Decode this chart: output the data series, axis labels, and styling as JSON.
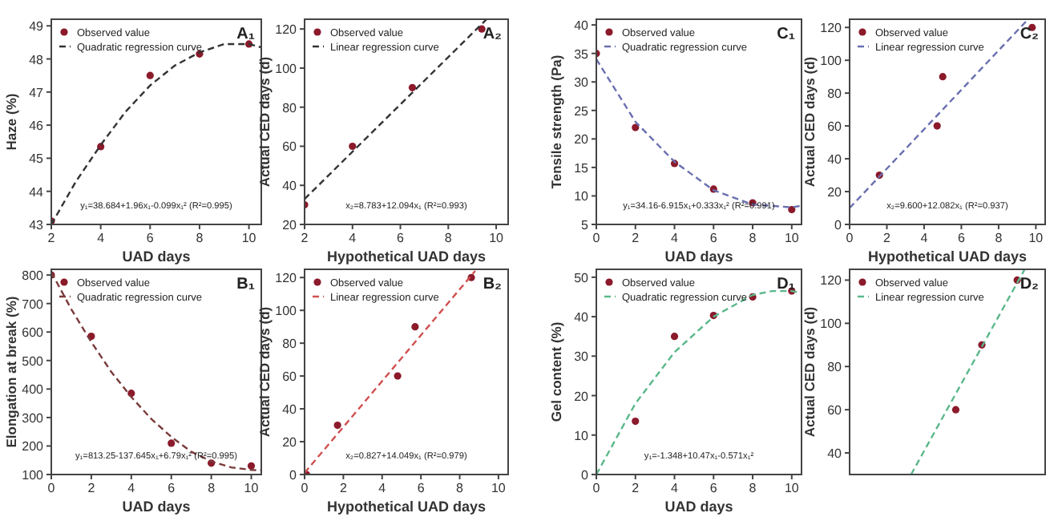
{
  "chart_data": [
    {
      "type": "scatter",
      "title": "A₁",
      "xlabel": "UAD days",
      "ylabel": "Haze (%)",
      "xlim": [
        2,
        10.5
      ],
      "xticks": [
        2,
        4,
        6,
        8,
        10
      ],
      "ylim": [
        43,
        49.2
      ],
      "yticks": [
        43,
        44,
        45,
        46,
        47,
        48,
        49
      ],
      "legend": "top left",
      "annotations": [
        "y₁=38.684+1.96x₁-0.099x₁² (R²=0.995)"
      ],
      "series": [
        {
          "name": "Observed value",
          "marker": "circle",
          "color": "#8b1a2b",
          "x": [
            2,
            4,
            6,
            8,
            10
          ],
          "values": [
            43.1,
            45.35,
            47.5,
            48.15,
            48.45
          ]
        },
        {
          "name": "Quadratic regression curve",
          "type": "line",
          "marker": "none",
          "line_style": "dashed",
          "color": "#333333",
          "x": [
            2,
            3,
            4,
            5,
            6,
            7,
            8,
            9,
            10,
            10.5
          ],
          "values": [
            43.0,
            44.3,
            45.4,
            46.4,
            47.2,
            47.8,
            48.2,
            48.45,
            48.45,
            48.35
          ]
        }
      ]
    },
    {
      "type": "scatter",
      "title": "A₂",
      "xlabel": "Hypothetical UAD days",
      "ylabel": "Actual CED days (d)",
      "xlim": [
        2,
        10.5
      ],
      "xticks": [
        2,
        4,
        6,
        8,
        10
      ],
      "ylim": [
        20,
        125
      ],
      "yticks": [
        20,
        40,
        60,
        80,
        100,
        120
      ],
      "legend": "top left",
      "annotations": [
        "x₂=8.783+12.094x₁ (R²=0.993)"
      ],
      "series": [
        {
          "name": "Observed value",
          "marker": "circle",
          "color": "#8b1a2b",
          "x": [
            2,
            4,
            6.5,
            9.4
          ],
          "values": [
            30,
            60,
            90,
            120
          ]
        },
        {
          "name": "Linear regression curve",
          "type": "line",
          "marker": "none",
          "line_style": "dashed",
          "color": "#333333",
          "x": [
            2,
            9.6
          ],
          "values": [
            33,
            125
          ]
        }
      ]
    },
    {
      "type": "scatter",
      "title": "C₁",
      "xlabel": "UAD days",
      "ylabel": "Tensile strength (Pa)",
      "xlim": [
        0,
        10.5
      ],
      "xticks": [
        0,
        2,
        4,
        6,
        8,
        10
      ],
      "ylim": [
        5,
        41
      ],
      "yticks": [
        5,
        10,
        15,
        20,
        25,
        30,
        35,
        40
      ],
      "legend": "top left",
      "annotations": [
        "y₁=34.16-6.915x₁+0.333x₁² (R²=0.991)"
      ],
      "series": [
        {
          "name": "Observed value",
          "marker": "circle",
          "color": "#8b1a2b",
          "x": [
            0,
            2,
            4,
            6,
            8,
            10
          ],
          "values": [
            35,
            22,
            15.7,
            11.2,
            8.8,
            7.6
          ]
        },
        {
          "name": "Quadratic regression curve",
          "type": "line",
          "marker": "none",
          "line_style": "dashed",
          "color": "#6a6fb0",
          "x": [
            0,
            2,
            4,
            6,
            8,
            10,
            10.5
          ],
          "values": [
            34,
            23,
            16,
            11,
            8.5,
            8,
            8.3
          ]
        }
      ]
    },
    {
      "type": "scatter",
      "title": "C₂",
      "xlabel": "Hypothetical UAD days",
      "ylabel": "Actual CED days (d)",
      "xlim": [
        0,
        10.5
      ],
      "xticks": [
        0,
        2,
        4,
        6,
        8,
        10
      ],
      "ylim": [
        0,
        125
      ],
      "yticks": [
        0,
        20,
        40,
        60,
        80,
        100,
        120
      ],
      "legend": "top left",
      "annotations": [
        "x₂=9.600+12.082x₁ (R²=0.937)"
      ],
      "series": [
        {
          "name": "Observed value",
          "marker": "circle",
          "color": "#8b1a2b",
          "x": [
            1.6,
            4.7,
            5.0,
            9.8
          ],
          "values": [
            30,
            60,
            90,
            120
          ]
        },
        {
          "name": "Linear regression curve",
          "type": "line",
          "marker": "none",
          "line_style": "dashed",
          "color": "#6a6fb0",
          "x": [
            0,
            9.5
          ],
          "values": [
            10,
            124
          ]
        }
      ]
    },
    {
      "type": "scatter",
      "title": "B₁",
      "xlabel": "UAD days",
      "ylabel": "Elongation at break (%)",
      "xlim": [
        0,
        10.5
      ],
      "xticks": [
        0,
        2,
        4,
        6,
        8,
        10
      ],
      "ylim": [
        100,
        820
      ],
      "yticks": [
        100,
        200,
        300,
        400,
        500,
        600,
        700,
        800
      ],
      "legend": "top left",
      "annotations": [
        "y₁=813.25-137.645x₁+6.79x₁² (R²=0.995)"
      ],
      "series": [
        {
          "name": "Observed value",
          "marker": "circle",
          "color": "#8b1a2b",
          "x": [
            0,
            2,
            4,
            6,
            8,
            10
          ],
          "values": [
            800,
            585,
            385,
            210,
            140,
            130
          ]
        },
        {
          "name": "Quadratic regression curve",
          "type": "line",
          "marker": "none",
          "line_style": "dashed",
          "color": "#7a3a3a",
          "x": [
            0,
            1,
            2,
            3,
            4,
            5,
            6,
            7,
            8,
            9,
            10,
            10.5
          ],
          "values": [
            810,
            680,
            565,
            460,
            372,
            295,
            232,
            180,
            146,
            125,
            116,
            115
          ]
        }
      ]
    },
    {
      "type": "scatter",
      "title": "B₂",
      "xlabel": "Hypothetical UAD days",
      "ylabel": "Actual CED days (d)",
      "xlim": [
        0,
        10.5
      ],
      "xticks": [
        0,
        2,
        4,
        6,
        8,
        10
      ],
      "ylim": [
        0,
        125
      ],
      "yticks": [
        0,
        20,
        40,
        60,
        80,
        100,
        120
      ],
      "legend": "top left",
      "annotations": [
        "x₂=0.827+14.049x₁ (R²=0.979)"
      ],
      "series": [
        {
          "name": "Observed value",
          "marker": "circle",
          "color": "#8b1a2b",
          "x": [
            0.1,
            1.7,
            4.8,
            5.7,
            8.6
          ],
          "values": [
            0,
            30,
            60,
            90,
            120
          ]
        },
        {
          "name": "Linear regression curve",
          "type": "line",
          "marker": "none",
          "line_style": "dashed",
          "color": "#d05050",
          "x": [
            0,
            8.8
          ],
          "values": [
            1,
            124
          ]
        }
      ]
    },
    {
      "type": "scatter",
      "title": "D₁",
      "xlabel": "UAD days",
      "ylabel": "Gel content (%)",
      "xlim": [
        0,
        10.5
      ],
      "xticks": [
        0,
        2,
        4,
        6,
        8,
        10
      ],
      "ylim": [
        0,
        52
      ],
      "yticks": [
        0,
        10,
        20,
        30,
        40,
        50
      ],
      "legend": "top left",
      "annotations": [
        "y₁=-1.348+10.47x₁-0.571x₁²"
      ],
      "series": [
        {
          "name": "Observed value",
          "marker": "circle",
          "color": "#8b1a2b",
          "x": [
            2,
            4,
            6,
            8,
            10
          ],
          "values": [
            13.5,
            35,
            40.3,
            45,
            46.5
          ]
        },
        {
          "name": "Quadratic regression curve",
          "type": "line",
          "marker": "none",
          "line_style": "dashed",
          "color": "#5ab88a",
          "x": [
            0,
            2,
            4,
            6,
            8,
            9,
            10,
            10.5
          ],
          "values": [
            0,
            18,
            31,
            40,
            45.5,
            46.5,
            46.5,
            46
          ]
        }
      ]
    },
    {
      "type": "scatter",
      "title": "D₂",
      "ylabel": "Actual CED days (d)",
      "xlim": [
        0,
        10.5
      ],
      "ylim": [
        30,
        125
      ],
      "yticks": [
        40,
        60,
        80,
        100,
        120
      ],
      "tick_labels": "y",
      "legend": "top left",
      "series": [
        {
          "name": "Observed value",
          "marker": "circle",
          "color": "#8b1a2b",
          "x": [
            5.7,
            7.1,
            9.0
          ],
          "values": [
            60,
            90,
            120
          ]
        },
        {
          "name": "Linear regression curve",
          "type": "line",
          "marker": "none",
          "line_style": "dashed",
          "color": "#5ab88a",
          "x": [
            3.3,
            9.4
          ],
          "values": [
            30,
            125
          ]
        }
      ]
    }
  ]
}
